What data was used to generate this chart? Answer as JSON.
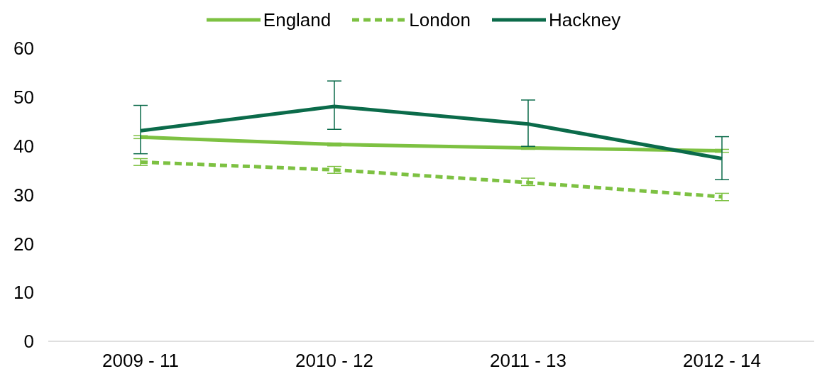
{
  "chart_data": {
    "type": "line",
    "categories": [
      "2009 - 11",
      "2010 - 12",
      "2011 - 13",
      "2012 - 14"
    ],
    "series": [
      {
        "name": "England",
        "color": "#7dc142",
        "line_style": "solid",
        "values": [
          41.8,
          40.3,
          39.6,
          39.0
        ],
        "errors": [
          0.3,
          0.3,
          0.3,
          0.3
        ]
      },
      {
        "name": "London",
        "color": "#7dc142",
        "line_style": "dashed",
        "values": [
          36.7,
          35.1,
          32.5,
          29.6
        ],
        "errors": [
          [
            36.0,
            37.4
          ],
          [
            34.4,
            35.8
          ],
          [
            31.9,
            33.4
          ],
          [
            28.8,
            30.3
          ]
        ]
      },
      {
        "name": "Hackney",
        "color": "#0b6b4a",
        "line_style": "solid",
        "values": [
          43.1,
          48.1,
          44.5,
          37.4
        ],
        "errors": [
          [
            38.4,
            48.3
          ],
          [
            43.4,
            53.3
          ],
          [
            39.9,
            49.4
          ],
          [
            33.1,
            41.9
          ]
        ]
      }
    ],
    "ylim": [
      0,
      60
    ],
    "yticks": [
      0,
      10,
      20,
      30,
      40,
      50,
      60
    ],
    "grid": false,
    "legend": "top",
    "marker": "none"
  }
}
